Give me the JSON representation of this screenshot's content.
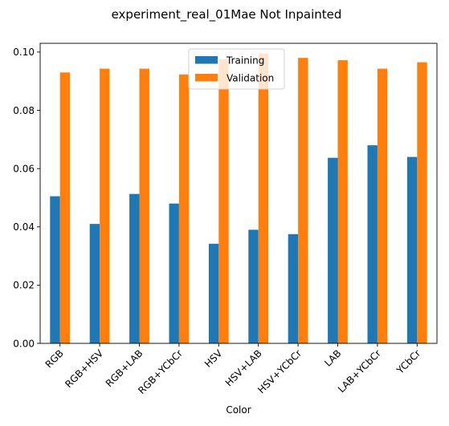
{
  "chart_data": {
    "type": "bar",
    "title": "experiment_real_01Mae Not Inpainted",
    "xlabel": "Color",
    "ylabel": "",
    "categories": [
      "RGB",
      "RGB+HSV",
      "RGB+LAB",
      "RGB+YCbCr",
      "HSV",
      "HSV+LAB",
      "HSV+YCbCr",
      "LAB",
      "LAB+YCbCr",
      "YCbCr"
    ],
    "series": [
      {
        "name": "Training",
        "color": "#1f77b4",
        "values": [
          0.0505,
          0.041,
          0.0513,
          0.048,
          0.0342,
          0.039,
          0.0375,
          0.0637,
          0.068,
          0.064
        ]
      },
      {
        "name": "Validation",
        "color": "#ff7f0e",
        "values": [
          0.093,
          0.0943,
          0.0943,
          0.0923,
          0.0975,
          0.0995,
          0.098,
          0.0972,
          0.0943,
          0.0965
        ]
      }
    ],
    "ylim": [
      0,
      0.103
    ],
    "yticks": [
      "0.00",
      "0.02",
      "0.04",
      "0.06",
      "0.08",
      "0.10"
    ],
    "ytick_values": [
      0,
      0.02,
      0.04,
      0.06,
      0.08,
      0.1
    ],
    "grid": false,
    "legend_position": "top-center",
    "xtick_rotation": "45 degrees"
  }
}
